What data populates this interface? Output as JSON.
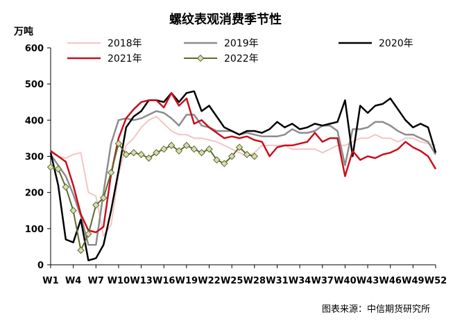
{
  "chart_data": {
    "type": "line",
    "title": "螺纹表观消费季节性",
    "ylabel": "万吨",
    "ylim": [
      0,
      600
    ],
    "yticks": [
      0,
      100,
      200,
      300,
      400,
      500,
      600
    ],
    "xlim": [
      1,
      52
    ],
    "xtick_labels": [
      "W1",
      "W4",
      "W7",
      "W10",
      "W13",
      "W16",
      "W19",
      "W22",
      "W25",
      "W28",
      "W31",
      "W34",
      "W37",
      "W40",
      "W43",
      "W46",
      "W49",
      "W52"
    ],
    "xtick_weeks": [
      1,
      4,
      7,
      10,
      13,
      16,
      19,
      22,
      25,
      28,
      31,
      34,
      37,
      40,
      43,
      46,
      49,
      52
    ],
    "grid": false,
    "legend_position": "top",
    "source": "图表来源：中信期货研究所",
    "series": [
      {
        "name": "2018年",
        "color": "#f4c4c4",
        "width": 2,
        "marker": false,
        "values": [
          310,
          300,
          295,
          305,
          310,
          200,
          190,
          80,
          110,
          250,
          330,
          350,
          380,
          400,
          410,
          390,
          370,
          360,
          360,
          350,
          350,
          345,
          340,
          330,
          320,
          310,
          300,
          310,
          330,
          330,
          330,
          330,
          320,
          320,
          320,
          320,
          310,
          320,
          330,
          330,
          340,
          350,
          350,
          360,
          350,
          350,
          340,
          350,
          350,
          340,
          335,
          330
        ]
      },
      {
        "name": "2019年",
        "color": "#8c8c8c",
        "width": 2.5,
        "marker": false,
        "values": [
          305,
          275,
          245,
          195,
          135,
          55,
          55,
          200,
          335,
          400,
          405,
          400,
          405,
          415,
          425,
          420,
          405,
          385,
          415,
          415,
          385,
          380,
          370,
          370,
          370,
          360,
          365,
          360,
          355,
          355,
          355,
          360,
          375,
          365,
          365,
          370,
          385,
          385,
          370,
          275,
          375,
          375,
          380,
          395,
          395,
          385,
          370,
          360,
          360,
          350,
          340,
          305
        ]
      },
      {
        "name": "2020年",
        "color": "#000000",
        "width": 2.5,
        "marker": false,
        "values": [
          310,
          220,
          70,
          62,
          125,
          12,
          18,
          55,
          150,
          260,
          380,
          410,
          425,
          455,
          455,
          450,
          475,
          450,
          475,
          480,
          425,
          440,
          410,
          380,
          370,
          360,
          370,
          370,
          365,
          375,
          395,
          380,
          390,
          375,
          380,
          390,
          385,
          390,
          395,
          455,
          300,
          440,
          420,
          440,
          445,
          460,
          430,
          400,
          380,
          390,
          380,
          310
        ]
      },
      {
        "name": "2021年",
        "color": "#c8101d",
        "width": 2.5,
        "marker": false,
        "values": [
          315,
          300,
          285,
          220,
          140,
          95,
          90,
          105,
          250,
          350,
          405,
          430,
          450,
          455,
          455,
          435,
          475,
          440,
          460,
          390,
          400,
          380,
          365,
          350,
          355,
          350,
          355,
          345,
          340,
          300,
          325,
          330,
          330,
          335,
          340,
          365,
          340,
          350,
          350,
          245,
          315,
          290,
          300,
          295,
          305,
          310,
          320,
          340,
          325,
          315,
          300,
          265
        ]
      },
      {
        "name": "2022年",
        "color": "#5a6a2e",
        "width": 2,
        "marker": true,
        "marker_fill": "#d8ddb0",
        "values": [
          270,
          265,
          215,
          150,
          40,
          85,
          165,
          185,
          255,
          335,
          305,
          310,
          305,
          295,
          310,
          320,
          330,
          315,
          330,
          320,
          310,
          320,
          290,
          280,
          300,
          325,
          305,
          300
        ]
      }
    ]
  }
}
